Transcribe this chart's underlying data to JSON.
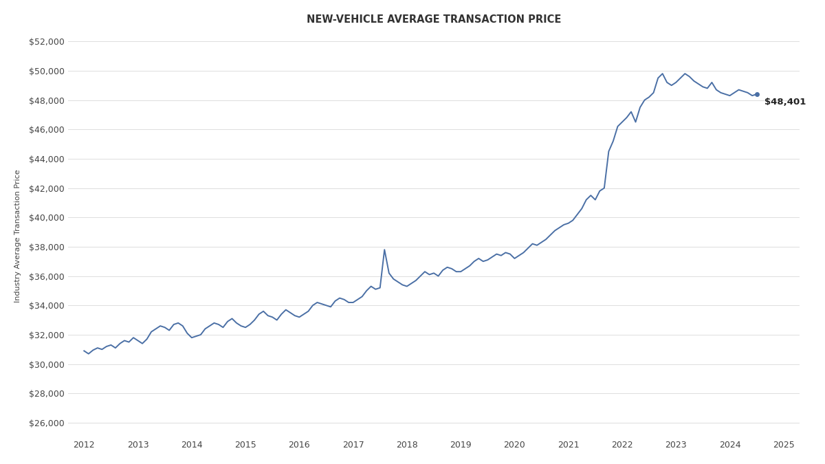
{
  "title": "NEW-VEHICLE AVERAGE TRANSACTION PRICE",
  "ylabel": "Industry Average Transaction Price",
  "line_color": "#4a6fa5",
  "background_color": "#ffffff",
  "annotation_text": "$48,401",
  "ylim": [
    25000,
    52500
  ],
  "yticks": [
    26000,
    28000,
    30000,
    32000,
    34000,
    36000,
    38000,
    40000,
    42000,
    44000,
    46000,
    48000,
    50000,
    52000
  ],
  "xlim_start": 2011.7,
  "xlim_end": 2025.3,
  "data": [
    [
      2012.0,
      30900
    ],
    [
      2012.083,
      30700
    ],
    [
      2012.167,
      30950
    ],
    [
      2012.25,
      31100
    ],
    [
      2012.333,
      31000
    ],
    [
      2012.417,
      31200
    ],
    [
      2012.5,
      31300
    ],
    [
      2012.583,
      31100
    ],
    [
      2012.667,
      31400
    ],
    [
      2012.75,
      31600
    ],
    [
      2012.833,
      31500
    ],
    [
      2012.917,
      31800
    ],
    [
      2013.0,
      31600
    ],
    [
      2013.083,
      31400
    ],
    [
      2013.167,
      31700
    ],
    [
      2013.25,
      32200
    ],
    [
      2013.333,
      32400
    ],
    [
      2013.417,
      32600
    ],
    [
      2013.5,
      32500
    ],
    [
      2013.583,
      32300
    ],
    [
      2013.667,
      32700
    ],
    [
      2013.75,
      32800
    ],
    [
      2013.833,
      32600
    ],
    [
      2013.917,
      32100
    ],
    [
      2014.0,
      31800
    ],
    [
      2014.083,
      31900
    ],
    [
      2014.167,
      32000
    ],
    [
      2014.25,
      32400
    ],
    [
      2014.333,
      32600
    ],
    [
      2014.417,
      32800
    ],
    [
      2014.5,
      32700
    ],
    [
      2014.583,
      32500
    ],
    [
      2014.667,
      32900
    ],
    [
      2014.75,
      33100
    ],
    [
      2014.833,
      32800
    ],
    [
      2014.917,
      32600
    ],
    [
      2015.0,
      32500
    ],
    [
      2015.083,
      32700
    ],
    [
      2015.167,
      33000
    ],
    [
      2015.25,
      33400
    ],
    [
      2015.333,
      33600
    ],
    [
      2015.417,
      33300
    ],
    [
      2015.5,
      33200
    ],
    [
      2015.583,
      33000
    ],
    [
      2015.667,
      33400
    ],
    [
      2015.75,
      33700
    ],
    [
      2015.833,
      33500
    ],
    [
      2015.917,
      33300
    ],
    [
      2016.0,
      33200
    ],
    [
      2016.083,
      33400
    ],
    [
      2016.167,
      33600
    ],
    [
      2016.25,
      34000
    ],
    [
      2016.333,
      34200
    ],
    [
      2016.417,
      34100
    ],
    [
      2016.5,
      34000
    ],
    [
      2016.583,
      33900
    ],
    [
      2016.667,
      34300
    ],
    [
      2016.75,
      34500
    ],
    [
      2016.833,
      34400
    ],
    [
      2016.917,
      34200
    ],
    [
      2017.0,
      34200
    ],
    [
      2017.083,
      34400
    ],
    [
      2017.167,
      34600
    ],
    [
      2017.25,
      35000
    ],
    [
      2017.333,
      35300
    ],
    [
      2017.417,
      35100
    ],
    [
      2017.5,
      35200
    ],
    [
      2017.583,
      37800
    ],
    [
      2017.667,
      36200
    ],
    [
      2017.75,
      35800
    ],
    [
      2017.833,
      35600
    ],
    [
      2017.917,
      35400
    ],
    [
      2018.0,
      35300
    ],
    [
      2018.083,
      35500
    ],
    [
      2018.167,
      35700
    ],
    [
      2018.25,
      36000
    ],
    [
      2018.333,
      36300
    ],
    [
      2018.417,
      36100
    ],
    [
      2018.5,
      36200
    ],
    [
      2018.583,
      36000
    ],
    [
      2018.667,
      36400
    ],
    [
      2018.75,
      36600
    ],
    [
      2018.833,
      36500
    ],
    [
      2018.917,
      36300
    ],
    [
      2019.0,
      36300
    ],
    [
      2019.083,
      36500
    ],
    [
      2019.167,
      36700
    ],
    [
      2019.25,
      37000
    ],
    [
      2019.333,
      37200
    ],
    [
      2019.417,
      37000
    ],
    [
      2019.5,
      37100
    ],
    [
      2019.583,
      37300
    ],
    [
      2019.667,
      37500
    ],
    [
      2019.75,
      37400
    ],
    [
      2019.833,
      37600
    ],
    [
      2019.917,
      37500
    ],
    [
      2020.0,
      37200
    ],
    [
      2020.083,
      37400
    ],
    [
      2020.167,
      37600
    ],
    [
      2020.25,
      37900
    ],
    [
      2020.333,
      38200
    ],
    [
      2020.417,
      38100
    ],
    [
      2020.5,
      38300
    ],
    [
      2020.583,
      38500
    ],
    [
      2020.667,
      38800
    ],
    [
      2020.75,
      39100
    ],
    [
      2020.833,
      39300
    ],
    [
      2020.917,
      39500
    ],
    [
      2021.0,
      39600
    ],
    [
      2021.083,
      39800
    ],
    [
      2021.167,
      40200
    ],
    [
      2021.25,
      40600
    ],
    [
      2021.333,
      41200
    ],
    [
      2021.417,
      41500
    ],
    [
      2021.5,
      41200
    ],
    [
      2021.583,
      41800
    ],
    [
      2021.667,
      42000
    ],
    [
      2021.75,
      44500
    ],
    [
      2021.833,
      45200
    ],
    [
      2021.917,
      46200
    ],
    [
      2022.0,
      46500
    ],
    [
      2022.083,
      46800
    ],
    [
      2022.167,
      47200
    ],
    [
      2022.25,
      46500
    ],
    [
      2022.333,
      47500
    ],
    [
      2022.417,
      48000
    ],
    [
      2022.5,
      48200
    ],
    [
      2022.583,
      48500
    ],
    [
      2022.667,
      49500
    ],
    [
      2022.75,
      49800
    ],
    [
      2022.833,
      49200
    ],
    [
      2022.917,
      49000
    ],
    [
      2023.0,
      49200
    ],
    [
      2023.083,
      49500
    ],
    [
      2023.167,
      49800
    ],
    [
      2023.25,
      49600
    ],
    [
      2023.333,
      49300
    ],
    [
      2023.417,
      49100
    ],
    [
      2023.5,
      48900
    ],
    [
      2023.583,
      48800
    ],
    [
      2023.667,
      49200
    ],
    [
      2023.75,
      48700
    ],
    [
      2023.833,
      48500
    ],
    [
      2023.917,
      48400
    ],
    [
      2024.0,
      48300
    ],
    [
      2024.083,
      48500
    ],
    [
      2024.167,
      48700
    ],
    [
      2024.25,
      48600
    ],
    [
      2024.333,
      48500
    ],
    [
      2024.417,
      48300
    ],
    [
      2024.5,
      48401
    ]
  ]
}
